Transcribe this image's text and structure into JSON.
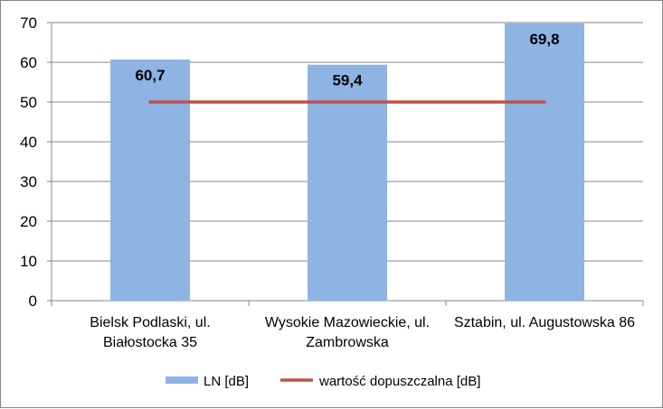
{
  "chart_data": {
    "type": "bar",
    "categories": [
      [
        "Bielsk Podlaski, ul.",
        "Białostocka 35"
      ],
      [
        "Wysokie Mazowieckie, ul.",
        "Zambrowska"
      ],
      [
        "Sztabin, ul. Augustowska 86"
      ]
    ],
    "series": [
      {
        "name": "LN [dB]",
        "type": "bar",
        "values": [
          60.7,
          59.4,
          69.8
        ],
        "data_labels": [
          "60,7",
          "59,4",
          "69,8"
        ],
        "color": "#8EB4E3"
      },
      {
        "name": "wartość dopuszczalna [dB]",
        "type": "line",
        "values": [
          50,
          50,
          50
        ],
        "color": "#C0504D"
      }
    ],
    "yticks": [
      "0",
      "10",
      "20",
      "30",
      "40",
      "50",
      "60",
      "70"
    ],
    "ylim": [
      0,
      70
    ],
    "grid": true,
    "legend_position": "bottom",
    "title": "",
    "xlabel": "",
    "ylabel": ""
  }
}
